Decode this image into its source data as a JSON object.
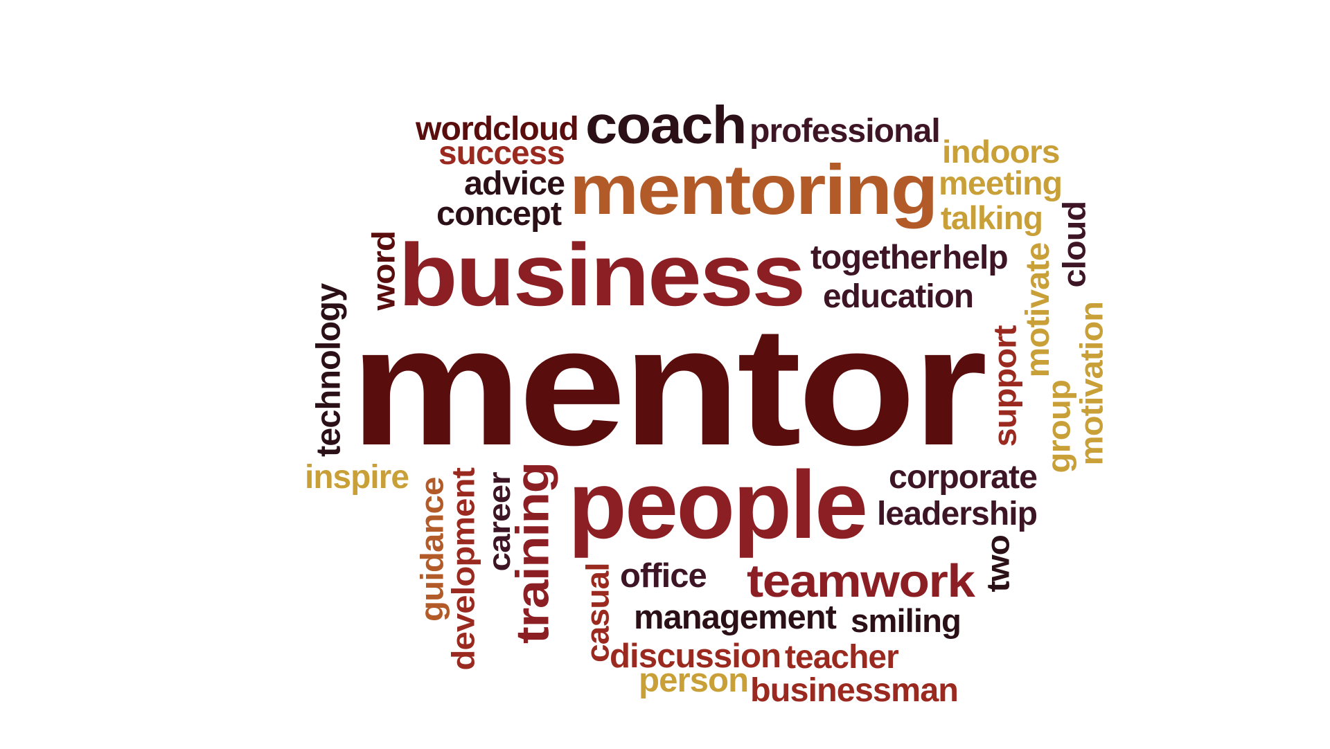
{
  "colors": {
    "background": "#ffffff",
    "dark_maroon": "#5a0d0d",
    "crimson": "#8c1f24",
    "dark_purple": "#3d1524",
    "near_black": "#2b1018",
    "rust": "#9a2a1f",
    "copper": "#b25a28",
    "gold": "#c9a038"
  },
  "words": [
    {
      "id": "mentor",
      "text": "mentor",
      "color": "#5a0d0d",
      "orientation": "horizontal",
      "weight": 100
    },
    {
      "id": "business",
      "text": "business",
      "color": "#8c1f24",
      "orientation": "horizontal",
      "weight": 60
    },
    {
      "id": "people",
      "text": "people",
      "color": "#8c1f24",
      "orientation": "horizontal",
      "weight": 58
    },
    {
      "id": "mentoring",
      "text": "mentoring",
      "color": "#b25a28",
      "orientation": "horizontal",
      "weight": 45
    },
    {
      "id": "coach",
      "text": "coach",
      "color": "#2b1018",
      "orientation": "horizontal",
      "weight": 35
    },
    {
      "id": "teamwork",
      "text": "teamwork",
      "color": "#8c1f24",
      "orientation": "horizontal",
      "weight": 30
    },
    {
      "id": "training",
      "text": "training",
      "color": "#8c1f24",
      "orientation": "vertical",
      "weight": 30
    },
    {
      "id": "wordcloud",
      "text": "wordcloud",
      "color": "#5a0d0d",
      "orientation": "horizontal",
      "weight": 20
    },
    {
      "id": "professional",
      "text": "professional",
      "color": "#3d1524",
      "orientation": "horizontal",
      "weight": 20
    },
    {
      "id": "success",
      "text": "success",
      "color": "#9a2a1f",
      "orientation": "horizontal",
      "weight": 18
    },
    {
      "id": "advice",
      "text": "advice",
      "color": "#2b1018",
      "orientation": "horizontal",
      "weight": 18
    },
    {
      "id": "concept",
      "text": "concept",
      "color": "#2b1018",
      "orientation": "horizontal",
      "weight": 18
    },
    {
      "id": "indoors",
      "text": "indoors",
      "color": "#c9a038",
      "orientation": "horizontal",
      "weight": 18
    },
    {
      "id": "meeting",
      "text": "meeting",
      "color": "#c9a038",
      "orientation": "horizontal",
      "weight": 18
    },
    {
      "id": "talking",
      "text": "talking",
      "color": "#c9a038",
      "orientation": "horizontal",
      "weight": 18
    },
    {
      "id": "together",
      "text": "together",
      "color": "#3d1524",
      "orientation": "horizontal",
      "weight": 18
    },
    {
      "id": "help",
      "text": "help",
      "color": "#3d1524",
      "orientation": "horizontal",
      "weight": 18
    },
    {
      "id": "education",
      "text": "education",
      "color": "#3d1524",
      "orientation": "horizontal",
      "weight": 18
    },
    {
      "id": "word",
      "text": "word",
      "color": "#5a0d0d",
      "orientation": "vertical",
      "weight": 18
    },
    {
      "id": "technology",
      "text": "technology",
      "color": "#2b1018",
      "orientation": "vertical",
      "weight": 18
    },
    {
      "id": "cloud",
      "text": "cloud",
      "color": "#3d1524",
      "orientation": "vertical",
      "weight": 18
    },
    {
      "id": "motivate",
      "text": "motivate",
      "color": "#c9a038",
      "orientation": "vertical",
      "weight": 18
    },
    {
      "id": "motivation",
      "text": "motivation",
      "color": "#c9a038",
      "orientation": "vertical",
      "weight": 18
    },
    {
      "id": "support",
      "text": "support",
      "color": "#9a2a1f",
      "orientation": "vertical",
      "weight": 18
    },
    {
      "id": "group",
      "text": "group",
      "color": "#c9a038",
      "orientation": "vertical",
      "weight": 18
    },
    {
      "id": "inspire",
      "text": "inspire",
      "color": "#c9a038",
      "orientation": "horizontal",
      "weight": 18
    },
    {
      "id": "corporate",
      "text": "corporate",
      "color": "#3d1524",
      "orientation": "horizontal",
      "weight": 18
    },
    {
      "id": "leadership",
      "text": "leadership",
      "color": "#3d1524",
      "orientation": "horizontal",
      "weight": 18
    },
    {
      "id": "guidance",
      "text": "guidance",
      "color": "#b25a28",
      "orientation": "vertical",
      "weight": 18
    },
    {
      "id": "development",
      "text": "development",
      "color": "#9a2a1f",
      "orientation": "vertical",
      "weight": 18
    },
    {
      "id": "career",
      "text": "career",
      "color": "#3d1524",
      "orientation": "vertical",
      "weight": 18
    },
    {
      "id": "casual",
      "text": "casual",
      "color": "#9a2a1f",
      "orientation": "vertical",
      "weight": 18
    },
    {
      "id": "office",
      "text": "office",
      "color": "#3d1524",
      "orientation": "horizontal",
      "weight": 18
    },
    {
      "id": "two",
      "text": "two",
      "color": "#2b1018",
      "orientation": "vertical",
      "weight": 18
    },
    {
      "id": "management",
      "text": "management",
      "color": "#2b1018",
      "orientation": "horizontal",
      "weight": 18
    },
    {
      "id": "smiling",
      "text": "smiling",
      "color": "#2b1018",
      "orientation": "horizontal",
      "weight": 18
    },
    {
      "id": "discussion",
      "text": "discussion",
      "color": "#9a2a1f",
      "orientation": "horizontal",
      "weight": 18
    },
    {
      "id": "teacher",
      "text": "teacher",
      "color": "#9a2a1f",
      "orientation": "horizontal",
      "weight": 18
    },
    {
      "id": "person",
      "text": "person",
      "color": "#c9a038",
      "orientation": "horizontal",
      "weight": 18
    },
    {
      "id": "businessman",
      "text": "businessman",
      "color": "#9a2a1f",
      "orientation": "horizontal",
      "weight": 18
    }
  ]
}
